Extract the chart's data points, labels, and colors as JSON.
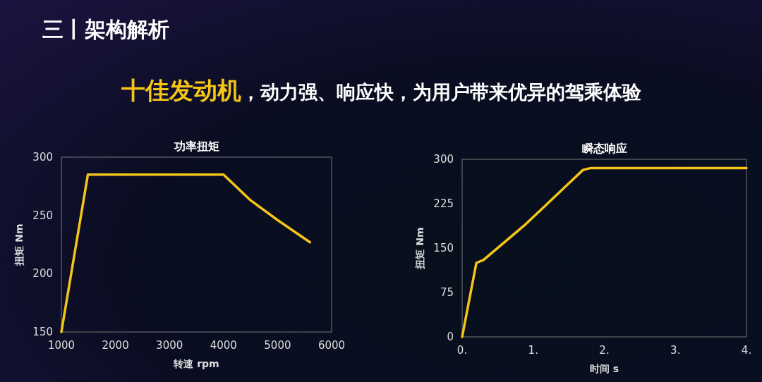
{
  "chart_data": [
    {
      "type": "other",
      "title": "三丨架构解析",
      "annotations": [
        "十佳发动机",
        "，动力强、响应快，为用户带来优异的驾乘体验"
      ]
    },
    {
      "type": "line",
      "title": "功率扭矩",
      "xlabel": "转速 rpm",
      "ylabel": "扭矩 Nm",
      "xlim": [
        1000,
        6000
      ],
      "xticks": [
        1000,
        2000,
        3000,
        4000,
        5000,
        6000
      ],
      "ylim": [
        150,
        300
      ],
      "yticks": [
        150,
        200,
        250,
        300
      ],
      "grid": false,
      "marker": "none",
      "line_style": "solid",
      "series": [
        {
          "color": "#f5c518",
          "x": [
            1000,
            1490,
            4000,
            4500,
            5000,
            5600
          ],
          "values": [
            150,
            285,
            285,
            263,
            246,
            227
          ]
        }
      ]
    },
    {
      "type": "line",
      "title": "瞬态响应",
      "xlabel": "时间 s",
      "ylabel": "扭矩 Nm",
      "xlim": [
        0,
        4
      ],
      "xticks": [
        {
          "value": 0,
          "label": "0."
        },
        {
          "value": 1,
          "label": "1."
        },
        {
          "value": 2,
          "label": "2."
        },
        {
          "value": 3,
          "label": "3."
        },
        {
          "value": 4,
          "label": "4."
        }
      ],
      "ylim": [
        0,
        300
      ],
      "yticks": [
        0,
        75,
        150,
        225,
        300
      ],
      "grid": false,
      "marker": "none",
      "line_style": "solid",
      "series": [
        {
          "color": "#f5c518",
          "x": [
            0,
            0.2,
            0.3,
            0.9,
            1.7,
            1.8,
            4
          ],
          "values": [
            0,
            125,
            130,
            191,
            282,
            285,
            285
          ]
        }
      ]
    }
  ]
}
